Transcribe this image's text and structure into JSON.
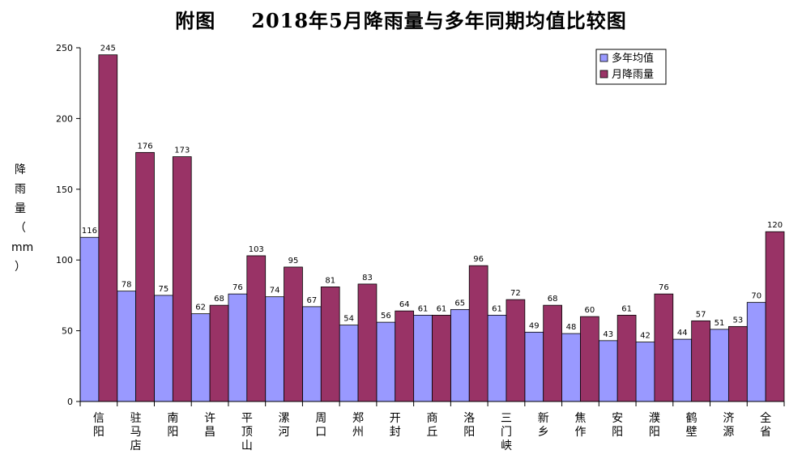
{
  "title": "附图　　2018年5月降雨量与多年同期均值比较图",
  "title_parts": [
    "附图",
    "2018年5月降雨量与多年同期均值比较图"
  ],
  "ylabel_chars": [
    "降",
    "雨",
    "量",
    "（",
    "mm",
    "）"
  ],
  "colors": {
    "avg": "#9999ff",
    "may": "#993366",
    "axis": "#000000"
  },
  "chart_data": {
    "type": "bar",
    "title": "附图　　2018年5月降雨量与多年同期均值比较图",
    "xlabel": "",
    "ylabel": "降雨量（mm）",
    "ylim": [
      0,
      250
    ],
    "yticks": [
      0,
      50,
      100,
      150,
      200,
      250
    ],
    "grid": false,
    "legend_position": "top-right",
    "categories": [
      "信阳",
      "驻马店",
      "南阳",
      "许昌",
      "平顶山",
      "漯河",
      "周口",
      "郑州",
      "开封",
      "商丘",
      "洛阳",
      "三门峡",
      "新乡",
      "焦作",
      "安阳",
      "濮阳",
      "鹤壁",
      "济源",
      "全省"
    ],
    "series": [
      {
        "name": "多年均值",
        "color": "#9999ff",
        "values": [
          116,
          78,
          75,
          62,
          76,
          74,
          67,
          54,
          56,
          61,
          65,
          61,
          49,
          48,
          43,
          42,
          44,
          51,
          70
        ]
      },
      {
        "name": "月降雨量",
        "color": "#993366",
        "values": [
          245,
          176,
          173,
          68,
          103,
          95,
          81,
          83,
          64,
          61,
          96,
          72,
          68,
          60,
          61,
          76,
          57,
          53,
          120
        ]
      }
    ]
  }
}
